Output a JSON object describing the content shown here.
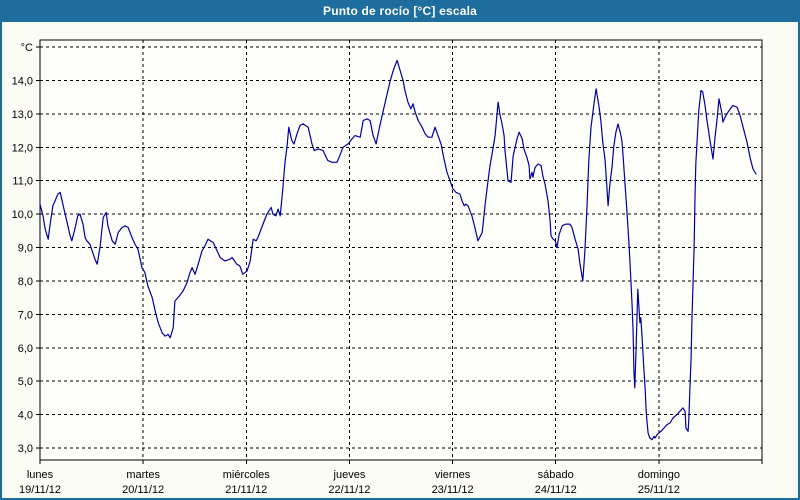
{
  "window": {
    "title": "Punto de rocío [°C] escala"
  },
  "colors": {
    "title_bar": "#1d6d9e",
    "window_border": "#1d6d9e",
    "background": "#fcfcf6",
    "plot_background": "#fefefb",
    "grid": "#000000",
    "axis": "#000000",
    "text": "#000000",
    "series_line": "#0000a0"
  },
  "chart_data": {
    "type": "line",
    "title": "Punto de rocío [°C] escala",
    "ylabel": "°C",
    "ylim": [
      2.6,
      15.2
    ],
    "grid": true,
    "legend": "none",
    "y_gridline_values": [
      15,
      14,
      13,
      12,
      11,
      10,
      9,
      8,
      7,
      6,
      5,
      4,
      3
    ],
    "y_tick_labels": [
      "°C",
      "14,0",
      "13,0",
      "12,0",
      "11,0",
      "10,0",
      "9,0",
      "8,0",
      "7,0",
      "6,0",
      "5,0",
      "4,0",
      "3,0"
    ],
    "x_days": [
      {
        "label": "lunes",
        "date": "19/11/12"
      },
      {
        "label": "martes",
        "date": "20/11/12"
      },
      {
        "label": "miércoles",
        "date": "21/11/12"
      },
      {
        "label": "jueves",
        "date": "22/11/12"
      },
      {
        "label": "viernes",
        "date": "23/11/12"
      },
      {
        "label": "sábado",
        "date": "24/11/12"
      },
      {
        "label": "domingo",
        "date": "25/11/12"
      }
    ],
    "x_unit": "hours_from_monday_00:00",
    "x_range_days": 7,
    "series": [
      {
        "name": "Punto de rocío [°C]",
        "color": "#0000a0",
        "points": [
          [
            0,
            10.3
          ],
          [
            0.7,
            9.95
          ],
          [
            1.2,
            9.55
          ],
          [
            1.9,
            9.25
          ],
          [
            2.3,
            9.65
          ],
          [
            3,
            10.25
          ],
          [
            4.2,
            10.6
          ],
          [
            4.7,
            10.65
          ],
          [
            5.4,
            10.25
          ],
          [
            6.3,
            9.75
          ],
          [
            7,
            9.35
          ],
          [
            7.4,
            9.2
          ],
          [
            8.1,
            9.55
          ],
          [
            8.8,
            9.95
          ],
          [
            9.3,
            10
          ],
          [
            10,
            9.7
          ],
          [
            10.5,
            9.3
          ],
          [
            10.9,
            9.2
          ],
          [
            11.6,
            9.1
          ],
          [
            12.8,
            8.65
          ],
          [
            13.3,
            8.5
          ],
          [
            14,
            9.05
          ],
          [
            14.7,
            9.9
          ],
          [
            15.4,
            10.05
          ],
          [
            15.8,
            9.65
          ],
          [
            16.8,
            9.2
          ],
          [
            17.5,
            9.1
          ],
          [
            18.2,
            9.45
          ],
          [
            19.1,
            9.6
          ],
          [
            19.8,
            9.65
          ],
          [
            20.5,
            9.6
          ],
          [
            21.4,
            9.3
          ],
          [
            22.1,
            9.1
          ],
          [
            22.8,
            8.95
          ],
          [
            23.7,
            8.4
          ],
          [
            24.4,
            8.25
          ],
          [
            25.1,
            7.85
          ],
          [
            26.1,
            7.5
          ],
          [
            26.8,
            7.1
          ],
          [
            27.5,
            6.75
          ],
          [
            28.4,
            6.45
          ],
          [
            29.1,
            6.35
          ],
          [
            29.8,
            6.4
          ],
          [
            30.3,
            6.3
          ],
          [
            31,
            6.6
          ],
          [
            31.4,
            7.4
          ],
          [
            32.1,
            7.5
          ],
          [
            33.3,
            7.7
          ],
          [
            34.2,
            7.95
          ],
          [
            34.9,
            8.25
          ],
          [
            35.4,
            8.4
          ],
          [
            36.1,
            8.2
          ],
          [
            36.8,
            8.5
          ],
          [
            37.7,
            8.9
          ],
          [
            38.4,
            9.05
          ],
          [
            39.1,
            9.25
          ],
          [
            40.3,
            9.15
          ],
          [
            41.2,
            8.9
          ],
          [
            41.9,
            8.7
          ],
          [
            43,
            8.6
          ],
          [
            44.2,
            8.65
          ],
          [
            44.7,
            8.7
          ],
          [
            45.8,
            8.5
          ],
          [
            46.5,
            8.45
          ],
          [
            47.2,
            8.2
          ],
          [
            48.2,
            8.3
          ],
          [
            48.9,
            8.6
          ],
          [
            49.6,
            9.25
          ],
          [
            50.3,
            9.2
          ],
          [
            50.7,
            9.3
          ],
          [
            51.9,
            9.7
          ],
          [
            52.8,
            10
          ],
          [
            53.8,
            10.2
          ],
          [
            54.2,
            10
          ],
          [
            54.9,
            9.95
          ],
          [
            55.4,
            10.15
          ],
          [
            55.9,
            9.95
          ],
          [
            56.5,
            10.75
          ],
          [
            57,
            11.55
          ],
          [
            57.5,
            12.05
          ],
          [
            57.9,
            12.6
          ],
          [
            58.6,
            12.2
          ],
          [
            59.1,
            12.1
          ],
          [
            59.8,
            12.4
          ],
          [
            60.5,
            12.65
          ],
          [
            61.2,
            12.7
          ],
          [
            62.4,
            12.6
          ],
          [
            63.3,
            12.1
          ],
          [
            63.8,
            11.9
          ],
          [
            64.7,
            11.95
          ],
          [
            65.9,
            11.9
          ],
          [
            66.6,
            11.7
          ],
          [
            67,
            11.6
          ],
          [
            68,
            11.55
          ],
          [
            69.1,
            11.55
          ],
          [
            69.6,
            11.7
          ],
          [
            70.5,
            12
          ],
          [
            71.7,
            12.1
          ],
          [
            72.6,
            12.25
          ],
          [
            73.3,
            12.35
          ],
          [
            74.5,
            12.3
          ],
          [
            75.2,
            12.8
          ],
          [
            76.1,
            12.85
          ],
          [
            76.8,
            12.8
          ],
          [
            77.5,
            12.35
          ],
          [
            78.2,
            12.1
          ],
          [
            79.1,
            12.65
          ],
          [
            79.8,
            13.05
          ],
          [
            80.8,
            13.6
          ],
          [
            81.5,
            14
          ],
          [
            82.2,
            14.3
          ],
          [
            83.1,
            14.6
          ],
          [
            83.8,
            14.3
          ],
          [
            84.5,
            14
          ],
          [
            84.9,
            13.7
          ],
          [
            85.6,
            13.35
          ],
          [
            86.3,
            13.15
          ],
          [
            86.8,
            13.3
          ],
          [
            87.3,
            13.05
          ],
          [
            88,
            12.8
          ],
          [
            88.9,
            12.6
          ],
          [
            89.6,
            12.4
          ],
          [
            90.3,
            12.3
          ],
          [
            91.2,
            12.3
          ],
          [
            91.9,
            12.6
          ],
          [
            92.6,
            12.35
          ],
          [
            93.3,
            12.1
          ],
          [
            94,
            11.65
          ],
          [
            94.7,
            11.25
          ],
          [
            95.4,
            11
          ],
          [
            96.1,
            10.75
          ],
          [
            96.8,
            10.65
          ],
          [
            97.7,
            10.6
          ],
          [
            98.2,
            10.4
          ],
          [
            98.7,
            10.25
          ],
          [
            99.1,
            10.3
          ],
          [
            99.6,
            10.25
          ],
          [
            100.5,
            9.95
          ],
          [
            101.2,
            9.6
          ],
          [
            101.9,
            9.2
          ],
          [
            102.9,
            9.45
          ],
          [
            103.6,
            10.3
          ],
          [
            104,
            10.75
          ],
          [
            104.7,
            11.45
          ],
          [
            105.2,
            11.8
          ],
          [
            105.9,
            12.35
          ],
          [
            106.6,
            13.35
          ],
          [
            107,
            13
          ],
          [
            107.5,
            12.7
          ],
          [
            108,
            12.35
          ],
          [
            108.2,
            11.9
          ],
          [
            108.9,
            11
          ],
          [
            109.6,
            10.95
          ],
          [
            110.1,
            11.75
          ],
          [
            111,
            12.25
          ],
          [
            111.5,
            12.45
          ],
          [
            112.2,
            12.25
          ],
          [
            112.6,
            11.95
          ],
          [
            113.3,
            11.7
          ],
          [
            113.8,
            11.45
          ],
          [
            114,
            11.05
          ],
          [
            114.5,
            11.25
          ],
          [
            114.7,
            11.1
          ],
          [
            115.2,
            11.4
          ],
          [
            115.9,
            11.5
          ],
          [
            116.6,
            11.45
          ],
          [
            117,
            11.15
          ],
          [
            117.5,
            10.9
          ],
          [
            118.2,
            10.4
          ],
          [
            118.7,
            9.8
          ],
          [
            118.9,
            9.35
          ],
          [
            119.4,
            9.25
          ],
          [
            119.9,
            9.2
          ],
          [
            120.3,
            9
          ],
          [
            120.8,
            9.4
          ],
          [
            121.5,
            9.65
          ],
          [
            122.4,
            9.7
          ],
          [
            123.3,
            9.7
          ],
          [
            123.8,
            9.6
          ],
          [
            124.5,
            9.25
          ],
          [
            125.2,
            8.95
          ],
          [
            125.6,
            8.55
          ],
          [
            126.3,
            8
          ],
          [
            126.8,
            8.9
          ],
          [
            127.3,
            10.3
          ],
          [
            127.7,
            11.6
          ],
          [
            128.2,
            12.6
          ],
          [
            128.9,
            13.3
          ],
          [
            129.4,
            13.75
          ],
          [
            130.1,
            13.2
          ],
          [
            130.5,
            12.8
          ],
          [
            131,
            12.1
          ],
          [
            131.5,
            11.6
          ],
          [
            131.9,
            10.8
          ],
          [
            132.2,
            10.25
          ],
          [
            132.6,
            10.9
          ],
          [
            133.1,
            11.4
          ],
          [
            133.5,
            12
          ],
          [
            134,
            12.45
          ],
          [
            134.5,
            12.7
          ],
          [
            135,
            12.45
          ],
          [
            135.4,
            12.2
          ],
          [
            135.7,
            11.7
          ],
          [
            136.1,
            10.95
          ],
          [
            136.6,
            10
          ],
          [
            137.1,
            9
          ],
          [
            137.5,
            8
          ],
          [
            137.8,
            7.2
          ],
          [
            138,
            6.5
          ],
          [
            138.2,
            5.3
          ],
          [
            138.4,
            4.8
          ],
          [
            138.7,
            6
          ],
          [
            139.1,
            7.75
          ],
          [
            139.6,
            6.75
          ],
          [
            139.8,
            6.9
          ],
          [
            140.1,
            6.3
          ],
          [
            140.5,
            5.4
          ],
          [
            140.8,
            4.8
          ],
          [
            141,
            4.2
          ],
          [
            141.2,
            3.85
          ],
          [
            141.5,
            3.45
          ],
          [
            141.9,
            3.3
          ],
          [
            142.4,
            3.25
          ],
          [
            142.9,
            3.35
          ],
          [
            143.1,
            3.3
          ],
          [
            143.6,
            3.4
          ],
          [
            144,
            3.45
          ],
          [
            144.5,
            3.5
          ],
          [
            145.2,
            3.6
          ],
          [
            145.9,
            3.7
          ],
          [
            146.6,
            3.75
          ],
          [
            147.3,
            3.9
          ],
          [
            148.2,
            4
          ],
          [
            148.9,
            4.1
          ],
          [
            149.6,
            4.2
          ],
          [
            150.1,
            4.1
          ],
          [
            150.3,
            3.6
          ],
          [
            150.8,
            3.5
          ],
          [
            151,
            3.9
          ],
          [
            151.2,
            4.7
          ],
          [
            151.5,
            5.7
          ],
          [
            151.7,
            6.8
          ],
          [
            151.9,
            7.7
          ],
          [
            152.2,
            9
          ],
          [
            152.4,
            10.5
          ],
          [
            152.6,
            11.5
          ],
          [
            152.9,
            12.2
          ],
          [
            153.3,
            13.1
          ],
          [
            153.8,
            13.7
          ],
          [
            154.2,
            13.65
          ],
          [
            154.7,
            13.3
          ],
          [
            155.2,
            12.8
          ],
          [
            155.9,
            12.2
          ],
          [
            156.6,
            11.65
          ],
          [
            157,
            12.2
          ],
          [
            157.5,
            12.8
          ],
          [
            158,
            13.45
          ],
          [
            158.7,
            13
          ],
          [
            158.9,
            12.75
          ],
          [
            159.4,
            12.9
          ],
          [
            160.1,
            13.05
          ],
          [
            161.2,
            13.25
          ],
          [
            162.2,
            13.2
          ],
          [
            162.9,
            12.95
          ],
          [
            163.6,
            12.6
          ],
          [
            164.5,
            12.15
          ],
          [
            165.2,
            11.7
          ],
          [
            165.9,
            11.35
          ],
          [
            166.6,
            11.2
          ]
        ]
      }
    ]
  }
}
